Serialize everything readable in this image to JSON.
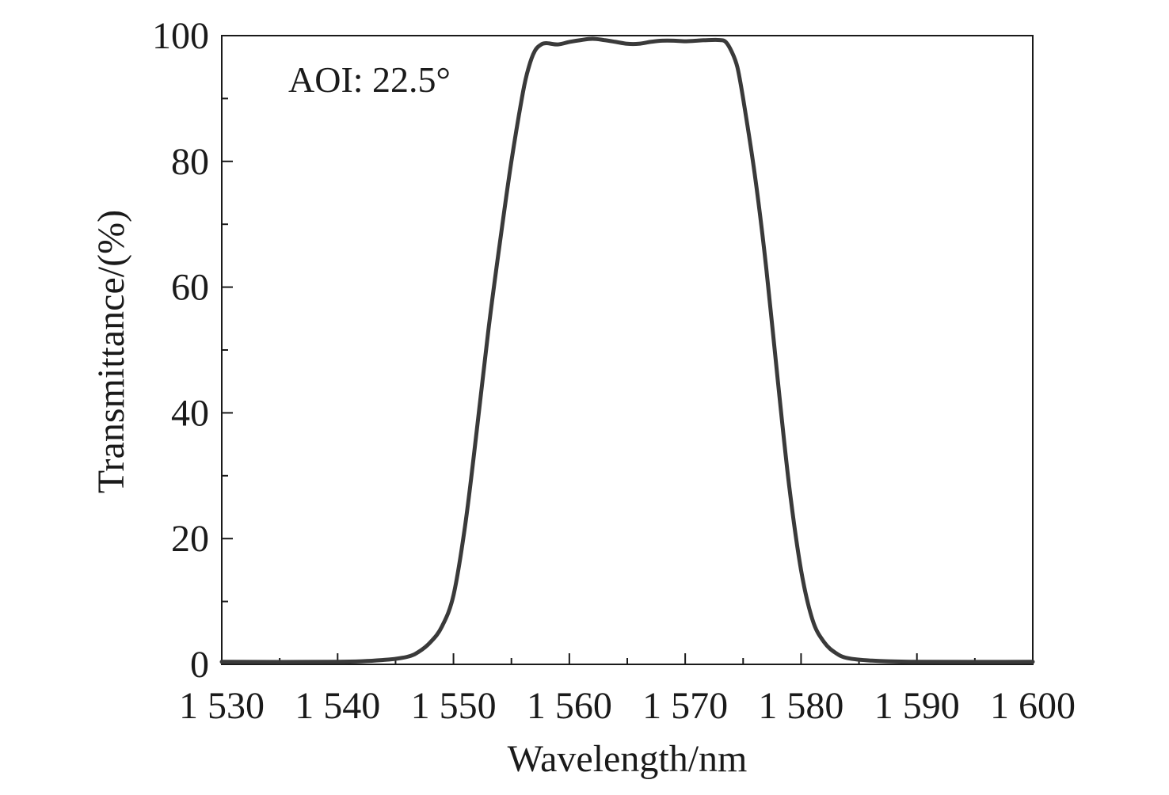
{
  "chart_data": {
    "type": "line",
    "xlabel": "Wavelength/nm",
    "ylabel": "Transmittance/(%)",
    "annotation": "AOI: 22.5°",
    "xlim": [
      1530,
      1600
    ],
    "ylim": [
      0,
      100
    ],
    "x_ticks": [
      {
        "value": 1530,
        "label": "1 530"
      },
      {
        "value": 1540,
        "label": "1 540"
      },
      {
        "value": 1550,
        "label": "1 550"
      },
      {
        "value": 1560,
        "label": "1 560"
      },
      {
        "value": 1570,
        "label": "1 570"
      },
      {
        "value": 1580,
        "label": "1 580"
      },
      {
        "value": 1590,
        "label": "1 590"
      },
      {
        "value": 1600,
        "label": "1 600"
      }
    ],
    "y_ticks": [
      {
        "value": 0,
        "label": "0"
      },
      {
        "value": 20,
        "label": "20"
      },
      {
        "value": 40,
        "label": "40"
      },
      {
        "value": 60,
        "label": "60"
      },
      {
        "value": 80,
        "label": "80"
      },
      {
        "value": 100,
        "label": "100"
      }
    ],
    "x_minor_step": 5,
    "y_minor_step": 10,
    "grid": false,
    "line_color": "#3a3a3a",
    "series": [
      {
        "x": [
          1530,
          1540,
          1544,
          1546,
          1547,
          1548,
          1549,
          1550,
          1551,
          1552,
          1553,
          1554,
          1555,
          1556,
          1556.5,
          1557,
          1557.5,
          1558,
          1559,
          1560,
          1561,
          1562,
          1563,
          1564,
          1565,
          1566,
          1567,
          1568,
          1569,
          1570,
          1571,
          1572,
          1573,
          1573.5,
          1574,
          1574.5,
          1575,
          1576,
          1577,
          1578,
          1579,
          1580,
          1581,
          1582,
          1583,
          1584,
          1586,
          1590,
          1600
        ],
        "y": [
          0.4,
          0.4,
          0.7,
          1.2,
          2.0,
          3.5,
          6.0,
          11,
          22,
          37,
          53,
          67,
          80,
          91,
          95,
          97.5,
          98.5,
          98.8,
          98.6,
          99.0,
          99.3,
          99.5,
          99.3,
          99.0,
          98.7,
          98.7,
          99.0,
          99.2,
          99.2,
          99.1,
          99.2,
          99.3,
          99.3,
          99.0,
          97.5,
          95,
          90,
          78,
          63,
          45,
          28,
          15,
          7,
          3.5,
          1.8,
          1.0,
          0.6,
          0.4,
          0.4
        ]
      }
    ]
  }
}
